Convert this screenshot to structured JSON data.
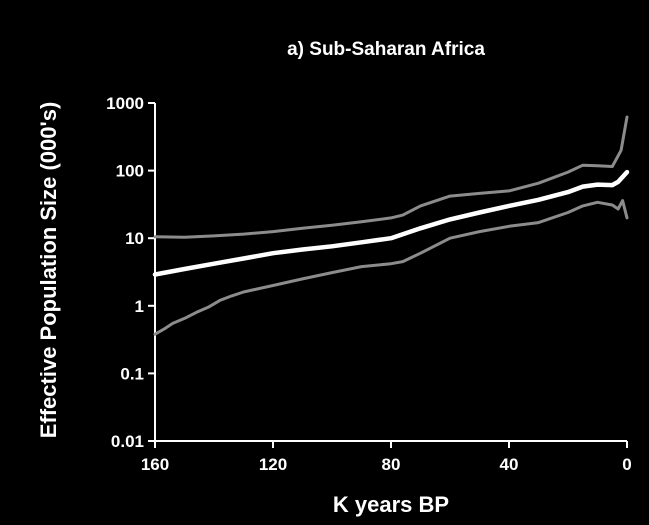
{
  "chart_data": {
    "type": "line",
    "title": "a) Sub-Saharan Africa",
    "xlabel": "K years BP",
    "ylabel": "Effective Population Size (000's)",
    "xlim": [
      160,
      0
    ],
    "ylim": [
      0.01,
      1000
    ],
    "yscale": "log",
    "grid": false,
    "legend": "none",
    "x_ticks": [
      {
        "value": 160,
        "label": "160"
      },
      {
        "value": 120,
        "label": "120"
      },
      {
        "value": 80,
        "label": "80"
      },
      {
        "value": 40,
        "label": "40"
      },
      {
        "value": 0,
        "label": "0"
      }
    ],
    "y_ticks": [
      {
        "value": 1000,
        "label": "1000"
      },
      {
        "value": 100,
        "label": "100"
      },
      {
        "value": 10,
        "label": "10"
      },
      {
        "value": 1,
        "label": "1"
      },
      {
        "value": 0.1,
        "label": "0.1"
      },
      {
        "value": 0.01,
        "label": "0.01"
      }
    ],
    "series": [
      {
        "color": "#8c8c8c",
        "line_width": 3,
        "points": [
          [
            160,
            10.5
          ],
          [
            150,
            10.3
          ],
          [
            140,
            10.8
          ],
          [
            130,
            11.5
          ],
          [
            120,
            12.5
          ],
          [
            110,
            14
          ],
          [
            100,
            15.5
          ],
          [
            90,
            17.5
          ],
          [
            80,
            20
          ],
          [
            76,
            22
          ],
          [
            70,
            30
          ],
          [
            60,
            42
          ],
          [
            50,
            46
          ],
          [
            40,
            50
          ],
          [
            30,
            65
          ],
          [
            20,
            95
          ],
          [
            15,
            120
          ],
          [
            10,
            118
          ],
          [
            5,
            115
          ],
          [
            2,
            200
          ],
          [
            0,
            620
          ]
        ]
      },
      {
        "color": "#ffffff",
        "line_width": 4.5,
        "points": [
          [
            160,
            2.9
          ],
          [
            150,
            3.5
          ],
          [
            140,
            4.2
          ],
          [
            130,
            5.0
          ],
          [
            120,
            6.0
          ],
          [
            110,
            6.8
          ],
          [
            100,
            7.6
          ],
          [
            90,
            8.7
          ],
          [
            80,
            10
          ],
          [
            70,
            14
          ],
          [
            60,
            19
          ],
          [
            50,
            24
          ],
          [
            40,
            30
          ],
          [
            30,
            37
          ],
          [
            20,
            48
          ],
          [
            15,
            58
          ],
          [
            10,
            62
          ],
          [
            5,
            61
          ],
          [
            3,
            68
          ],
          [
            0,
            95
          ]
        ]
      },
      {
        "color": "#8c8c8c",
        "line_width": 3,
        "points": [
          [
            160,
            0.38
          ],
          [
            157,
            0.45
          ],
          [
            154,
            0.55
          ],
          [
            150,
            0.65
          ],
          [
            146,
            0.8
          ],
          [
            142,
            0.95
          ],
          [
            138,
            1.2
          ],
          [
            134,
            1.4
          ],
          [
            130,
            1.6
          ],
          [
            120,
            2.0
          ],
          [
            110,
            2.5
          ],
          [
            100,
            3.1
          ],
          [
            90,
            3.8
          ],
          [
            80,
            4.2
          ],
          [
            76,
            4.5
          ],
          [
            70,
            6
          ],
          [
            60,
            10
          ],
          [
            50,
            12.5
          ],
          [
            40,
            15
          ],
          [
            30,
            17
          ],
          [
            20,
            24
          ],
          [
            15,
            30
          ],
          [
            10,
            34
          ],
          [
            5,
            31
          ],
          [
            3,
            27
          ],
          [
            1.5,
            36
          ],
          [
            0,
            20
          ]
        ]
      }
    ]
  }
}
